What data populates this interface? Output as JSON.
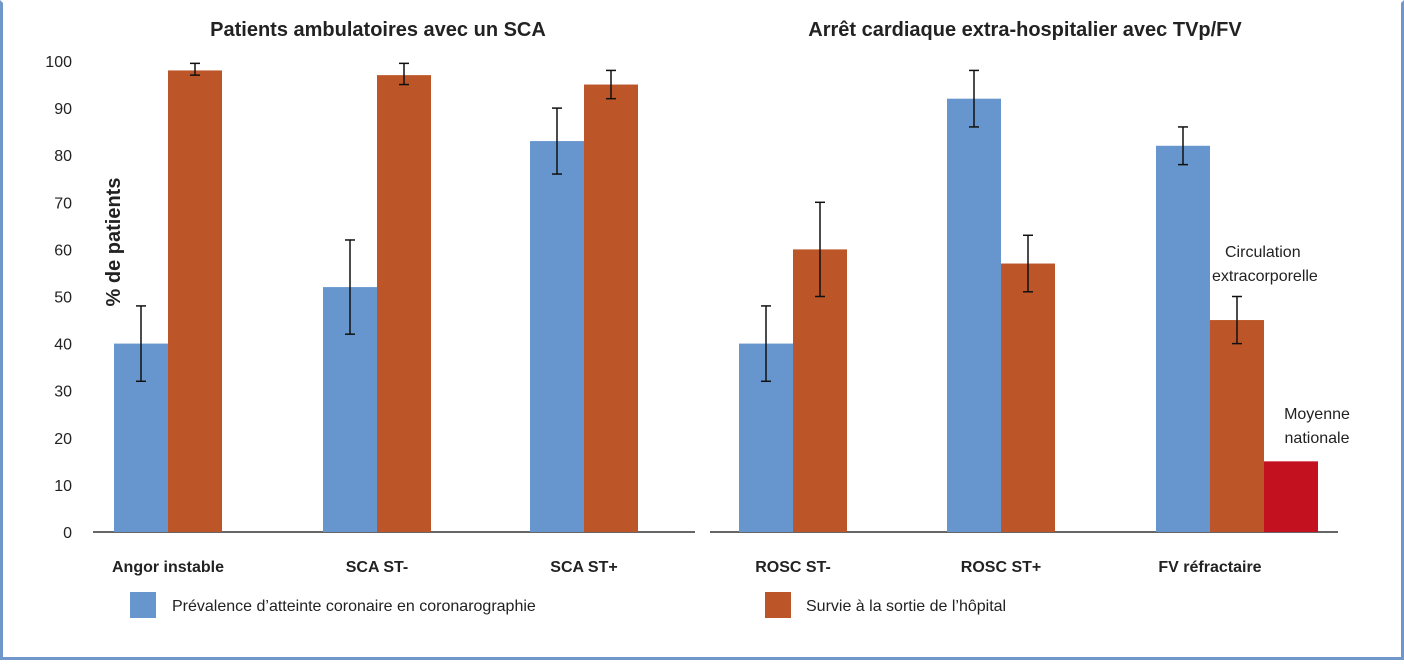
{
  "chart_data": {
    "type": "bar",
    "ylabel": "% de patients",
    "ylim": [
      0,
      100
    ],
    "yticks": [
      0,
      10,
      20,
      30,
      40,
      50,
      60,
      70,
      80,
      90,
      100
    ],
    "colors": {
      "prevalence": "#6796cf",
      "survie": "#bc5628",
      "nationale": "#c41120"
    },
    "legend": {
      "prevalence": "Prévalence d’atteinte coronaire en coronarographie",
      "survie": "Survie à la sortie de l’hôpital"
    },
    "panels": [
      {
        "title": "Patients ambulatoires avec un SCA",
        "categories": [
          "Angor instable",
          "SCA ST-",
          "SCA ST+"
        ],
        "series": [
          {
            "name": "Prévalence d’atteinte coronaire en coronarographie",
            "key": "prevalence",
            "values": [
              40,
              52,
              83
            ],
            "err_low": [
              32,
              42,
              76
            ],
            "err_high": [
              48,
              62,
              90
            ]
          },
          {
            "name": "Survie à la sortie de l’hôpital",
            "key": "survie",
            "values": [
              98,
              97,
              95
            ],
            "err_low": [
              97,
              95,
              92
            ],
            "err_high": [
              99.5,
              99.5,
              98
            ]
          }
        ]
      },
      {
        "title": "Arrêt cardiaque extra-hospitalier avec TVp/FV",
        "categories": [
          "ROSC ST-",
          "ROSC ST+",
          "FV réfractaire"
        ],
        "series": [
          {
            "name": "Prévalence d’atteinte coronaire en coronarographie",
            "key": "prevalence",
            "values": [
              40,
              92,
              82
            ],
            "err_low": [
              32,
              86,
              78
            ],
            "err_high": [
              48,
              98,
              86
            ]
          },
          {
            "name": "Survie à la sortie de l’hôpital",
            "key": "survie",
            "values": [
              60,
              57,
              45
            ],
            "err_low": [
              50,
              51,
              40
            ],
            "err_high": [
              70,
              63,
              50
            ]
          }
        ],
        "extra_bar": {
          "category": "FV réfractaire",
          "label": "Moyenne nationale",
          "value": 15,
          "key": "nationale"
        },
        "annotations": [
          {
            "text": "Circulation extracorporelle",
            "target": "FV réfractaire"
          },
          {
            "text": "Moyenne nationale",
            "target": "FV réfractaire"
          }
        ]
      }
    ]
  }
}
